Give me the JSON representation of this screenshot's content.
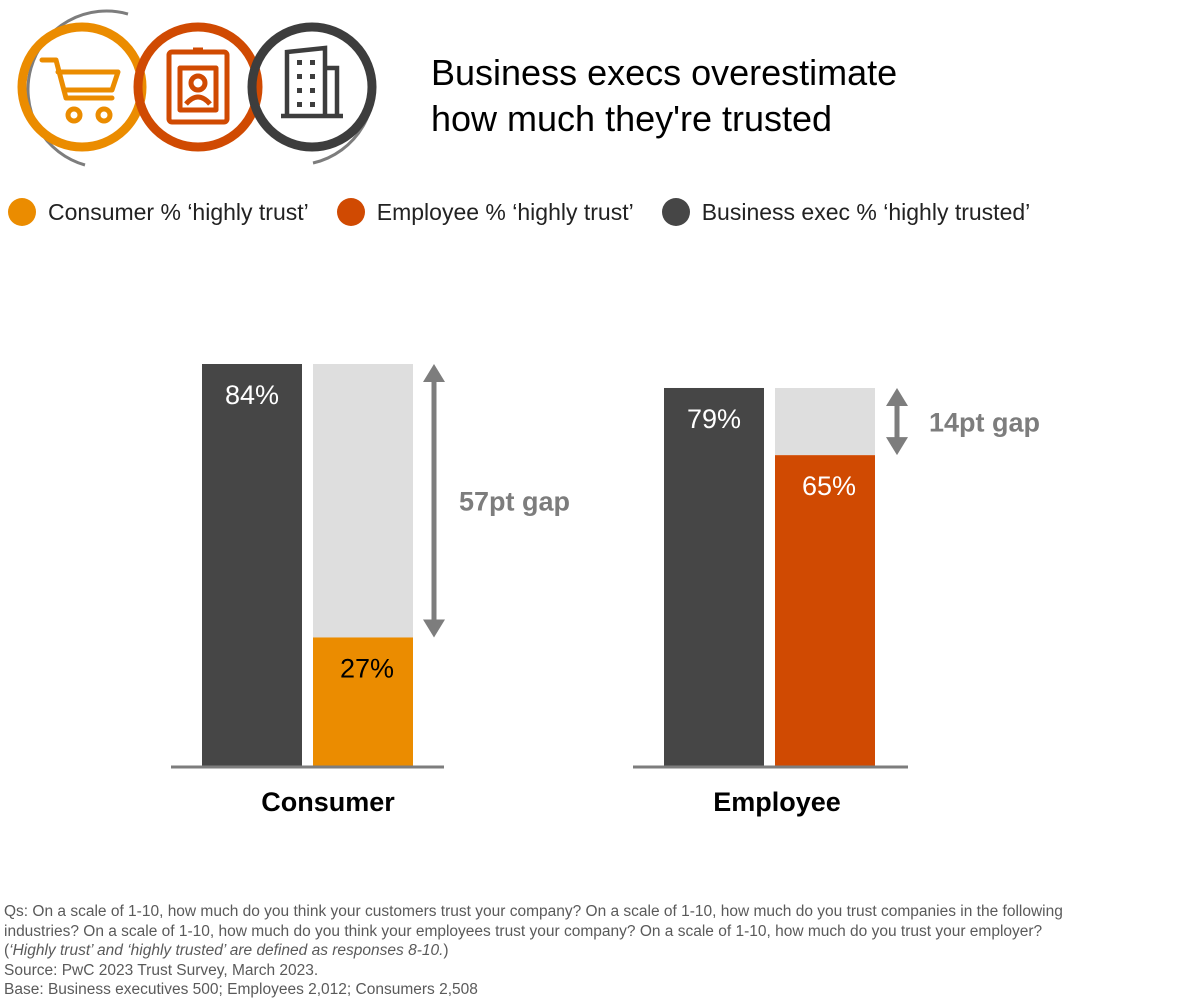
{
  "title": {
    "line1": "Business execs overestimate",
    "line2": "how much they're trusted"
  },
  "header_icons": [
    "shopping-cart-icon",
    "id-badge-icon",
    "office-building-icon"
  ],
  "colors": {
    "consumer": "#EB8C00",
    "employee": "#D04A02",
    "business_exec": "#464646",
    "gap": "#DEDEDE",
    "gap_text": "#7D7D7D",
    "axis": "#7D7D7D"
  },
  "legend": [
    {
      "label": "Consumer % ‘highly trust’",
      "color": "#EB8C00"
    },
    {
      "label": "Employee % ‘highly trust’",
      "color": "#D04A02"
    },
    {
      "label": "Business exec % ‘highly trusted’",
      "color": "#464646"
    }
  ],
  "chart_data": {
    "type": "bar",
    "categories": [
      "Consumer",
      "Employee"
    ],
    "series": [
      {
        "name": "Business exec % ‘highly trusted’",
        "values": [
          84,
          79
        ],
        "labels": [
          "84%",
          "79%"
        ]
      },
      {
        "name": "Trust % ‘highly trust’",
        "values": [
          27,
          65
        ],
        "labels": [
          "27%",
          "65%"
        ]
      }
    ],
    "gaps": [
      {
        "category": "Consumer",
        "label": "57pt gap",
        "value": 57
      },
      {
        "category": "Employee",
        "label": "14pt gap",
        "value": 14
      }
    ],
    "ylim": [
      0,
      84
    ],
    "grid": false
  },
  "footnote": {
    "line1": "Qs: On a scale of 1-10, how much do you think your customers trust your company? On a scale of 1-10, how much do you trust companies in the following",
    "line2": "industries? On a scale of 1-10, how much do you think your employees trust your company? On a scale of 1-10, how much do you trust your employer?",
    "line3_open": "(",
    "line3_italic": "‘Highly trust’ and ‘highly trusted’ are defined as responses 8-10.",
    "line3_close": ")",
    "source": "Source: PwC 2023 Trust Survey, March 2023.",
    "base": "Base: Business executives 500; Employees 2,012; Consumers 2,508"
  }
}
